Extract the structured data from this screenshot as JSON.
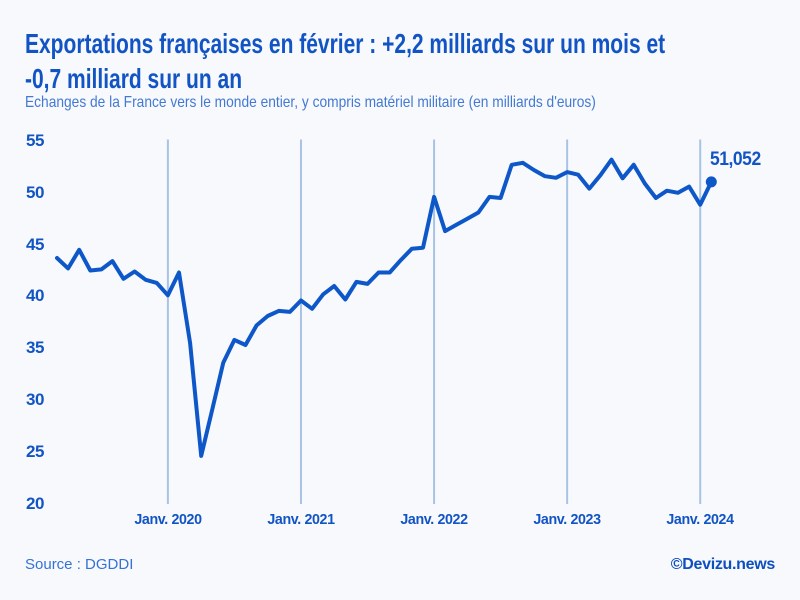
{
  "header": {
    "title_line1": "Exportations françaises en février : +2,2 milliards sur un mois et",
    "title_line2": "-0,7 milliard sur un an",
    "subtitle": "Echanges de la France vers le monde entier, y compris matériel militaire (en milliards d'euros)"
  },
  "footer": {
    "source": "Source : DGDDI",
    "credit": "©Devizu.news"
  },
  "chart_data": {
    "type": "line",
    "title": "Exportations françaises en février : +2,2 milliards sur un mois et -0,7 milliard sur un an",
    "subtitle": "Echanges de la France vers le monde entier, y compris matériel militaire (en milliards d'euros)",
    "xlabel": "",
    "ylabel": "",
    "ylim": [
      20,
      55
    ],
    "yticks": [
      55,
      50,
      45,
      40,
      35,
      30,
      25,
      20
    ],
    "x_tick_labels": [
      "Janv. 2020",
      "Janv. 2021",
      "Janv. 2022",
      "Janv. 2023",
      "Janv. 2024"
    ],
    "grid": "vertical-only",
    "legend": "none",
    "categories": [
      "2019-03",
      "2019-04",
      "2019-05",
      "2019-06",
      "2019-07",
      "2019-08",
      "2019-09",
      "2019-10",
      "2019-11",
      "2019-12",
      "2020-01",
      "2020-02",
      "2020-03",
      "2020-04",
      "2020-05",
      "2020-06",
      "2020-07",
      "2020-08",
      "2020-09",
      "2020-10",
      "2020-11",
      "2020-12",
      "2021-01",
      "2021-02",
      "2021-03",
      "2021-04",
      "2021-05",
      "2021-06",
      "2021-07",
      "2021-08",
      "2021-09",
      "2021-10",
      "2021-11",
      "2021-12",
      "2022-01",
      "2022-02",
      "2022-03",
      "2022-04",
      "2022-05",
      "2022-06",
      "2022-07",
      "2022-08",
      "2022-09",
      "2022-10",
      "2022-11",
      "2022-12",
      "2023-01",
      "2023-02",
      "2023-03",
      "2023-04",
      "2023-05",
      "2023-06",
      "2023-07",
      "2023-08",
      "2023-09",
      "2023-10",
      "2023-11",
      "2023-12",
      "2024-01",
      "2024-02"
    ],
    "series": [
      {
        "name": "Exportations de la France (milliards d'euros)",
        "values": [
          43.7,
          42.7,
          44.5,
          42.5,
          42.6,
          43.4,
          41.7,
          42.4,
          41.6,
          41.3,
          40.1,
          42.3,
          35.5,
          24.6,
          29.1,
          33.6,
          35.8,
          35.3,
          37.2,
          38.1,
          38.6,
          38.5,
          39.6,
          38.8,
          40.2,
          41.0,
          39.7,
          41.4,
          41.2,
          42.3,
          42.3,
          43.5,
          44.6,
          44.7,
          49.6,
          46.3,
          46.9,
          47.5,
          48.1,
          49.6,
          49.5,
          52.7,
          52.9,
          52.2,
          51.6,
          51.45,
          52.0,
          51.75,
          50.4,
          51.7,
          53.2,
          51.4,
          52.7,
          50.9,
          49.5,
          50.2,
          50.0,
          50.6,
          48.85,
          51.052
        ]
      }
    ],
    "last_point_label": "51,052",
    "last_point_value": 51.052,
    "colors": {
      "line": "#0e57c8",
      "marker": "#0e57c8",
      "grid": "#a9c3e6",
      "label": "#1254c4",
      "background": "#f7f9fc"
    }
  }
}
